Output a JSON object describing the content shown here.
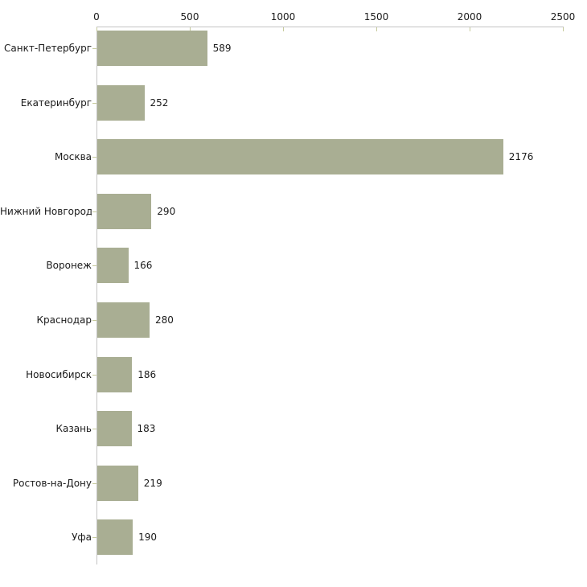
{
  "chart_data": {
    "type": "bar",
    "orientation": "horizontal",
    "title": "",
    "xlabel": "",
    "ylabel": "",
    "categories": [
      "Санкт-Петербург",
      "Екатеринбург",
      "Москва",
      "Нижний Новгород",
      "Воронеж",
      "Краснодар",
      "Новосибирск",
      "Казань",
      "Ростов-на-Дону",
      "Уфа"
    ],
    "values": [
      589,
      252,
      2176,
      290,
      166,
      280,
      186,
      183,
      219,
      190
    ],
    "value_labels_shown": true,
    "x_ticks": [
      0,
      500,
      1000,
      1500,
      2000,
      2500
    ],
    "xlim": [
      0,
      2500
    ],
    "grid": false,
    "legend": "none",
    "colors": {
      "bar": "#a9ae93",
      "axis_line": "#c3c3c3",
      "tick": "#c6ca9c",
      "text": "#1a1a1a",
      "background": "#ffffff"
    }
  }
}
